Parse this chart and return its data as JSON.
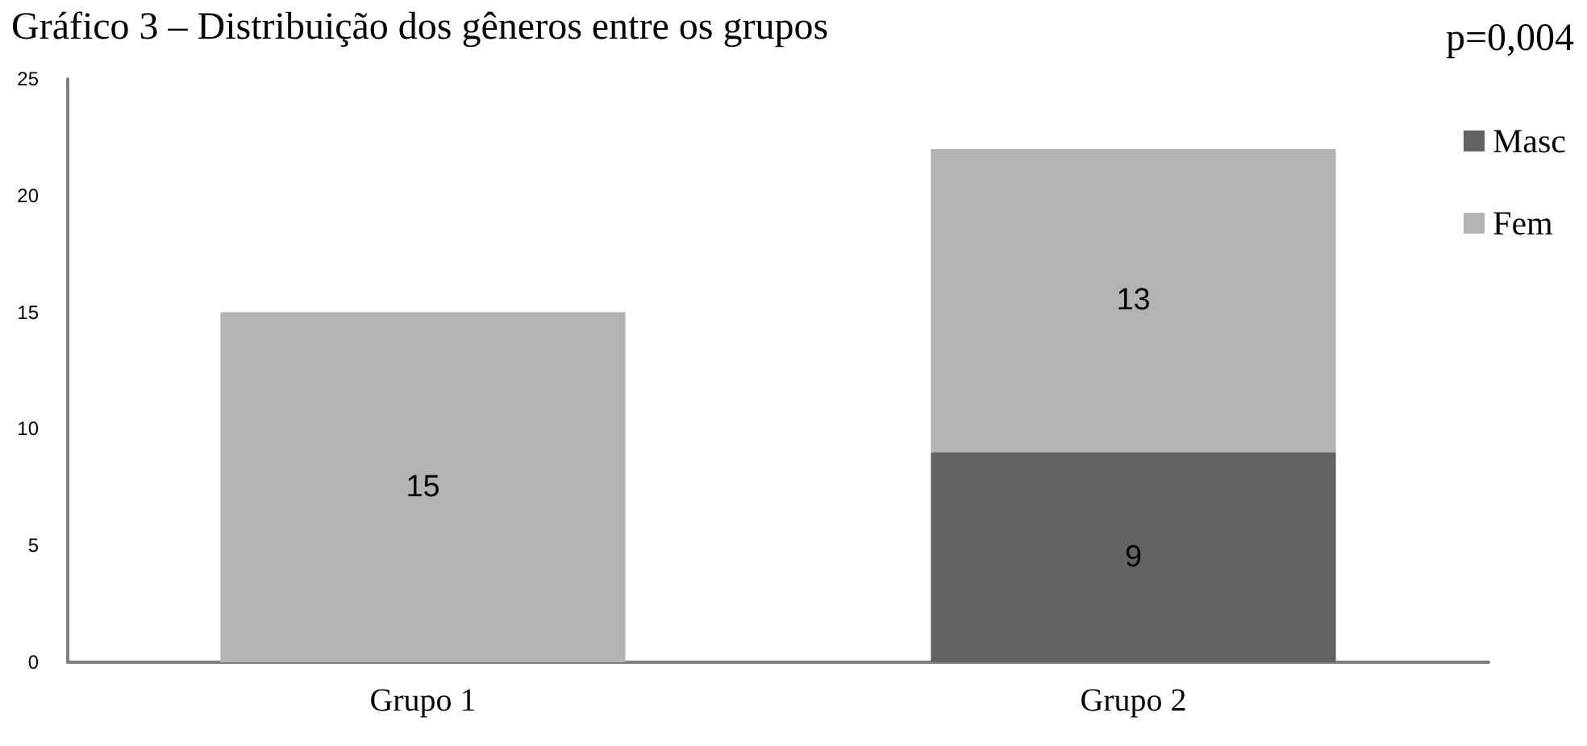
{
  "chart_data": {
    "type": "bar",
    "title": "Gráfico 3 – Distribuição dos gêneros entre os grupos",
    "annotations": [
      "p=0,004"
    ],
    "categories": [
      "Grupo 1",
      "Grupo 2"
    ],
    "series": [
      {
        "name": "Masc",
        "color": "#636363",
        "values": [
          null,
          9
        ]
      },
      {
        "name": "Fem",
        "color": "#b3b3b3",
        "values": [
          15,
          13
        ]
      }
    ],
    "stacked": true,
    "data_labels": true,
    "ylim": [
      0,
      25
    ],
    "yticks": [
      0,
      5,
      10,
      15,
      20,
      25
    ],
    "grid": false,
    "legend": "top right"
  }
}
